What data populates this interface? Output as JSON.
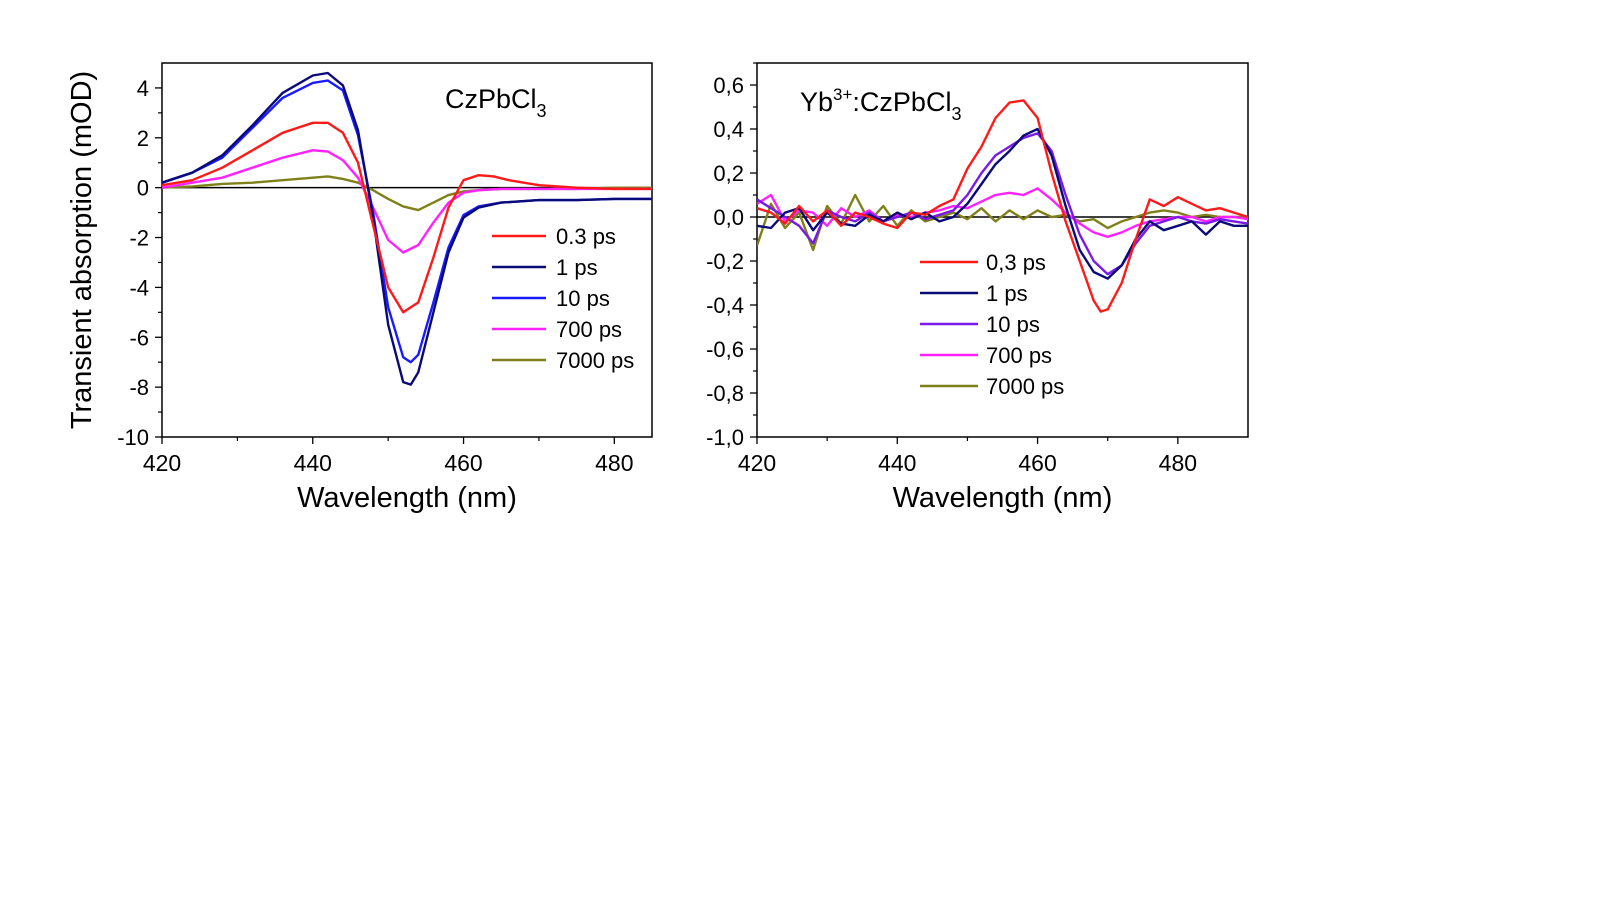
{
  "chart_data": [
    {
      "type": "line",
      "annotation": {
        "main": "CzPbCl",
        "sub": "3"
      },
      "xlabel": "Wavelength (nm)",
      "ylabel": "Transient absorption (mOD)",
      "xlim": [
        420,
        485
      ],
      "ylim": [
        -10,
        5
      ],
      "xticks": [
        "420",
        "440",
        "460",
        "480"
      ],
      "yticks": [
        "4",
        "2",
        "0",
        "-2",
        "-4",
        "-6",
        "-8",
        "-10"
      ],
      "legend_position": "right",
      "series": [
        {
          "name": "0.3 ps",
          "color": "#ff1a1a",
          "x": [
            420,
            424,
            428,
            432,
            436,
            440,
            442,
            444,
            446,
            448,
            450,
            452,
            454,
            456,
            458,
            460,
            462,
            464,
            466,
            470,
            475,
            480,
            485
          ],
          "y": [
            0.1,
            0.3,
            0.8,
            1.5,
            2.2,
            2.6,
            2.6,
            2.2,
            1.0,
            -1.5,
            -4.0,
            -5.0,
            -4.6,
            -2.8,
            -0.8,
            0.3,
            0.5,
            0.45,
            0.3,
            0.1,
            0.0,
            -0.05,
            -0.05
          ]
        },
        {
          "name": "1 ps",
          "color": "#0a0a78",
          "x": [
            420,
            424,
            428,
            432,
            436,
            440,
            442,
            444,
            446,
            448,
            450,
            452,
            453,
            454,
            456,
            458,
            460,
            462,
            465,
            470,
            475,
            480,
            485
          ],
          "y": [
            0.2,
            0.6,
            1.3,
            2.5,
            3.8,
            4.5,
            4.6,
            4.1,
            2.3,
            -1.2,
            -5.5,
            -7.8,
            -7.9,
            -7.4,
            -5.0,
            -2.6,
            -1.2,
            -0.8,
            -0.6,
            -0.5,
            -0.5,
            -0.45,
            -0.45
          ]
        },
        {
          "name": "10 ps",
          "color": "#1a1aff",
          "x": [
            420,
            424,
            428,
            432,
            436,
            440,
            442,
            444,
            446,
            448,
            450,
            452,
            453,
            454,
            456,
            458,
            460,
            462,
            465,
            470,
            475,
            480,
            485
          ],
          "y": [
            0.2,
            0.6,
            1.2,
            2.4,
            3.6,
            4.2,
            4.3,
            3.9,
            2.1,
            -1.0,
            -4.8,
            -6.8,
            -7.0,
            -6.7,
            -4.6,
            -2.4,
            -1.1,
            -0.75,
            -0.6,
            -0.5,
            -0.5,
            -0.45,
            -0.45
          ]
        },
        {
          "name": "700 ps",
          "color": "#ff22ff",
          "x": [
            420,
            424,
            428,
            432,
            436,
            440,
            442,
            444,
            446,
            448,
            450,
            452,
            454,
            456,
            458,
            460,
            462,
            465,
            470,
            475,
            480,
            485
          ],
          "y": [
            0.0,
            0.2,
            0.4,
            0.8,
            1.2,
            1.5,
            1.45,
            1.1,
            0.4,
            -0.8,
            -2.1,
            -2.6,
            -2.3,
            -1.4,
            -0.6,
            -0.2,
            -0.1,
            -0.05,
            -0.05,
            -0.05,
            -0.05,
            -0.05
          ]
        },
        {
          "name": "7000 ps",
          "color": "#80801a",
          "x": [
            420,
            424,
            428,
            432,
            436,
            440,
            442,
            444,
            446,
            448,
            450,
            452,
            454,
            456,
            458,
            460,
            462,
            465,
            470,
            475,
            480,
            485
          ],
          "y": [
            0.0,
            0.05,
            0.15,
            0.2,
            0.3,
            0.4,
            0.45,
            0.35,
            0.2,
            -0.1,
            -0.45,
            -0.75,
            -0.9,
            -0.6,
            -0.3,
            -0.15,
            -0.1,
            -0.05,
            -0.05,
            -0.05,
            0.0,
            0.0
          ]
        }
      ]
    },
    {
      "type": "line",
      "annotation": {
        "prefix": "Yb",
        "sup": "3+",
        "main": ":CzPbCl",
        "sub": "3"
      },
      "xlabel": "Wavelength (nm)",
      "ylabel": "",
      "xlim": [
        420,
        490
      ],
      "ylim": [
        -1.0,
        0.7
      ],
      "xticks": [
        "420",
        "440",
        "460",
        "480"
      ],
      "yticks": [
        "0,6",
        "0,4",
        "0,2",
        "0,0",
        "-0,2",
        "-0,4",
        "-0,6",
        "-0,8",
        "-1,0"
      ],
      "legend_position": "center",
      "series": [
        {
          "name": "0,3 ps",
          "color": "#ff1a1a",
          "x": [
            420,
            422,
            424,
            426,
            428,
            430,
            432,
            434,
            436,
            438,
            440,
            442,
            444,
            446,
            448,
            450,
            452,
            454,
            456,
            458,
            460,
            462,
            464,
            466,
            468,
            469,
            470,
            472,
            474,
            476,
            478,
            480,
            482,
            484,
            486,
            488,
            490
          ],
          "y": [
            0.04,
            0.02,
            -0.03,
            0.05,
            -0.02,
            0.03,
            -0.04,
            0.02,
            0.0,
            -0.03,
            -0.05,
            0.02,
            0.01,
            0.05,
            0.08,
            0.22,
            0.32,
            0.45,
            0.52,
            0.53,
            0.45,
            0.2,
            -0.02,
            -0.2,
            -0.38,
            -0.43,
            -0.42,
            -0.3,
            -0.1,
            0.08,
            0.05,
            0.09,
            0.06,
            0.03,
            0.04,
            0.02,
            0.0
          ]
        },
        {
          "name": "1 ps",
          "color": "#0a0a78",
          "x": [
            420,
            422,
            424,
            426,
            428,
            430,
            432,
            434,
            436,
            438,
            440,
            442,
            444,
            446,
            448,
            450,
            452,
            454,
            456,
            458,
            460,
            462,
            464,
            466,
            468,
            470,
            472,
            474,
            476,
            478,
            480,
            482,
            484,
            486,
            488,
            490
          ],
          "y": [
            -0.04,
            -0.05,
            0.02,
            0.04,
            -0.06,
            0.02,
            -0.03,
            -0.04,
            0.01,
            -0.02,
            0.02,
            -0.01,
            0.02,
            -0.02,
            0.0,
            0.06,
            0.15,
            0.24,
            0.3,
            0.37,
            0.4,
            0.28,
            0.05,
            -0.15,
            -0.25,
            -0.28,
            -0.22,
            -0.1,
            -0.02,
            -0.06,
            -0.04,
            -0.02,
            -0.08,
            -0.02,
            -0.04,
            -0.04
          ]
        },
        {
          "name": "10 ps",
          "color": "#7a1ae6",
          "x": [
            420,
            422,
            424,
            426,
            428,
            430,
            432,
            434,
            436,
            438,
            440,
            442,
            444,
            446,
            448,
            450,
            452,
            454,
            456,
            458,
            460,
            462,
            464,
            466,
            468,
            470,
            472,
            474,
            476,
            478,
            480,
            482,
            484,
            486,
            488,
            490
          ],
          "y": [
            0.08,
            0.04,
            0.0,
            -0.04,
            -0.12,
            0.03,
            0.0,
            -0.02,
            0.02,
            -0.02,
            0.0,
            0.02,
            -0.01,
            0.01,
            0.03,
            0.1,
            0.2,
            0.28,
            0.32,
            0.36,
            0.38,
            0.3,
            0.1,
            -0.08,
            -0.2,
            -0.26,
            -0.22,
            -0.12,
            -0.04,
            -0.02,
            0.0,
            -0.02,
            -0.03,
            -0.01,
            -0.02,
            -0.03
          ]
        },
        {
          "name": "700 ps",
          "color": "#ff22ff",
          "x": [
            420,
            422,
            424,
            426,
            428,
            430,
            432,
            434,
            436,
            438,
            440,
            442,
            444,
            446,
            448,
            450,
            452,
            454,
            456,
            458,
            460,
            462,
            464,
            466,
            468,
            470,
            472,
            474,
            476,
            478,
            480,
            482,
            484,
            486,
            488,
            490
          ],
          "y": [
            0.06,
            0.1,
            -0.02,
            0.03,
            0.02,
            -0.04,
            0.04,
            0.0,
            0.03,
            -0.02,
            0.01,
            0.0,
            0.02,
            0.03,
            0.05,
            0.04,
            0.07,
            0.1,
            0.11,
            0.1,
            0.13,
            0.08,
            0.02,
            -0.03,
            -0.07,
            -0.09,
            -0.07,
            -0.04,
            -0.02,
            -0.01,
            0.0,
            0.0,
            -0.02,
            0.0,
            0.0,
            -0.01
          ]
        },
        {
          "name": "7000 ps",
          "color": "#80801a",
          "x": [
            420,
            422,
            424,
            426,
            428,
            430,
            432,
            434,
            436,
            438,
            440,
            442,
            444,
            446,
            448,
            450,
            452,
            454,
            456,
            458,
            460,
            462,
            464,
            466,
            468,
            470,
            472,
            474,
            476,
            478,
            480,
            482,
            484,
            486,
            488,
            490
          ],
          "y": [
            -0.13,
            0.06,
            -0.05,
            0.02,
            -0.15,
            0.05,
            -0.03,
            0.1,
            -0.02,
            0.05,
            -0.04,
            0.03,
            -0.02,
            0.0,
            0.02,
            -0.01,
            0.04,
            -0.02,
            0.03,
            -0.01,
            0.03,
            0.0,
            0.01,
            -0.02,
            -0.01,
            -0.05,
            -0.02,
            0.0,
            0.02,
            0.03,
            0.02,
            0.0,
            0.01,
            0.0,
            0.0,
            0.0
          ]
        }
      ]
    }
  ]
}
